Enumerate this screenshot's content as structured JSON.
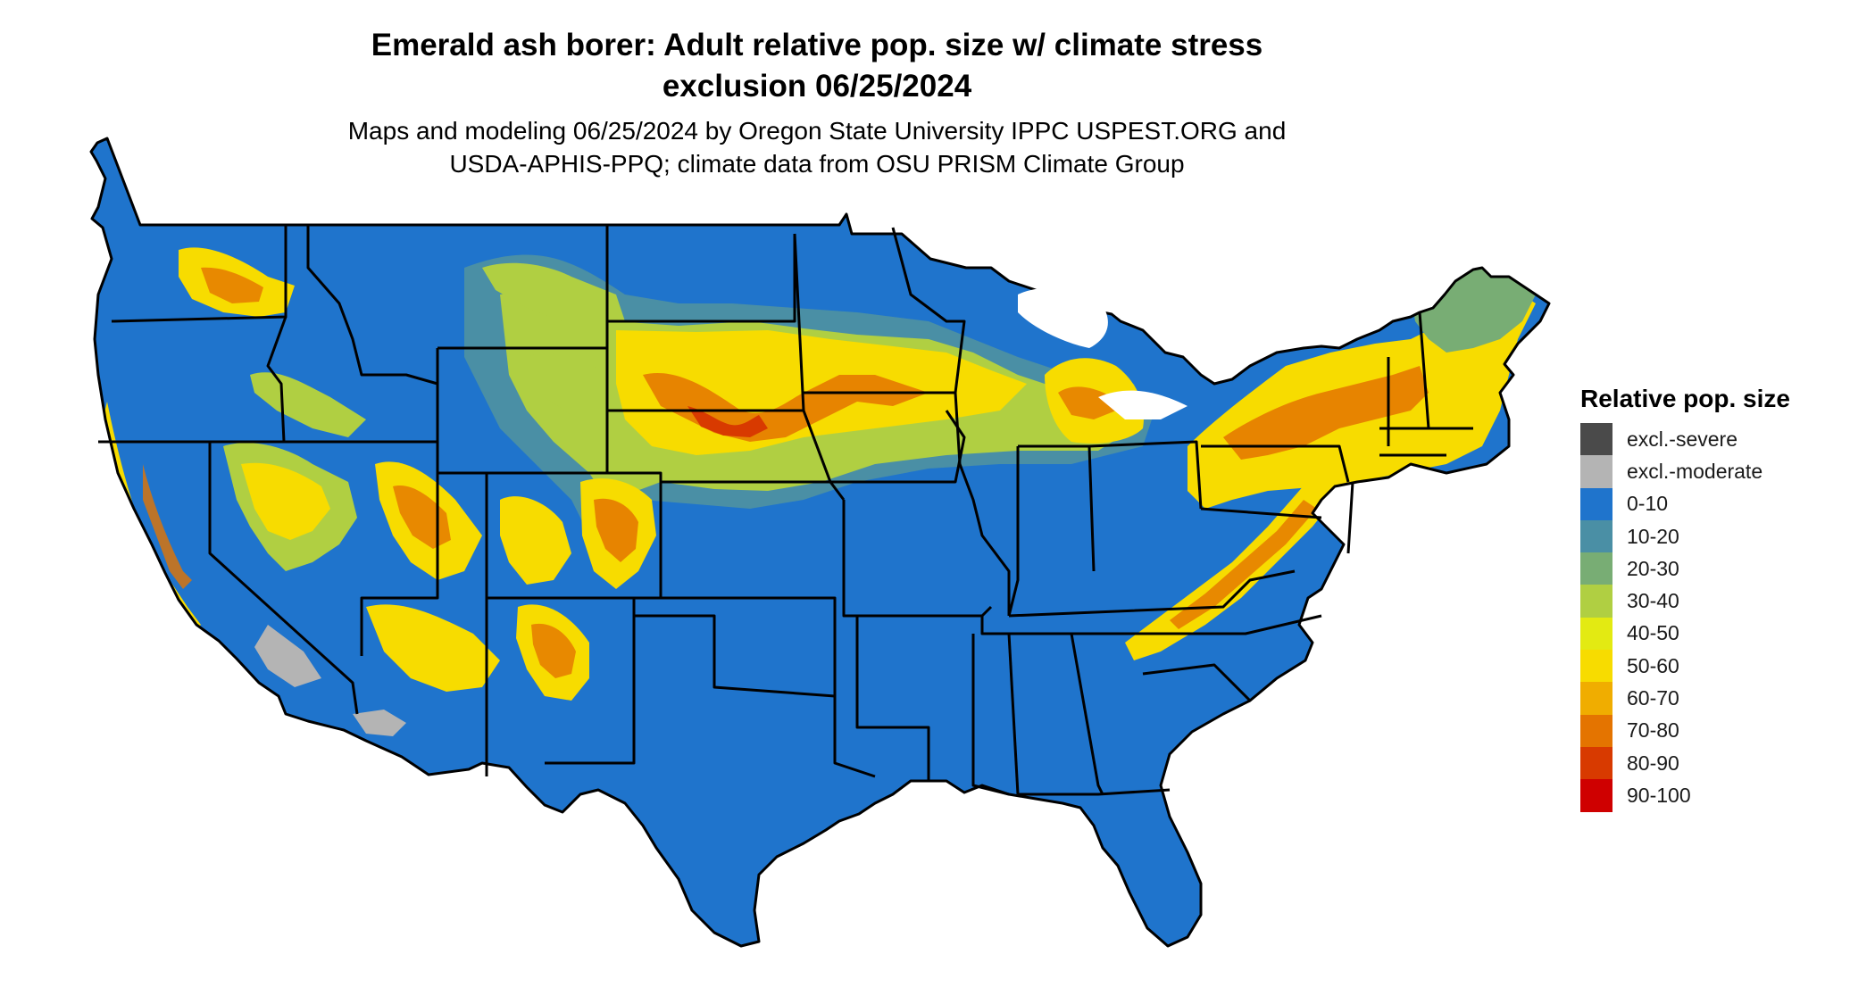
{
  "title": {
    "line1": "Emerald ash borer: Adult relative pop. size w/ climate stress",
    "line2": "exclusion 06/25/2024"
  },
  "subtitle": {
    "line1": "Maps and modeling 06/25/2024 by Oregon State University IPPC USPEST.ORG and",
    "line2": "USDA-APHIS-PPQ; climate data from OSU PRISM Climate Group"
  },
  "legend": {
    "title": "Relative pop. size",
    "items": [
      {
        "label": "excl.-severe",
        "color": "#4a4a4a"
      },
      {
        "label": "excl.-moderate",
        "color": "#b4b4b4"
      },
      {
        "label": "0-10",
        "color": "#1f74cc"
      },
      {
        "label": "10-20",
        "color": "#4a8fa5"
      },
      {
        "label": "20-30",
        "color": "#78ad74"
      },
      {
        "label": "30-40",
        "color": "#b0cf42"
      },
      {
        "label": "40-50",
        "color": "#e3ea12"
      },
      {
        "label": "50-60",
        "color": "#f7dc00"
      },
      {
        "label": "60-70",
        "color": "#f0ad00"
      },
      {
        "label": "70-80",
        "color": "#e47400"
      },
      {
        "label": "80-90",
        "color": "#d83a00"
      },
      {
        "label": "90-100",
        "color": "#cf0000"
      }
    ]
  },
  "colors": {
    "base": "#1f74cc",
    "border": "#000000"
  }
}
